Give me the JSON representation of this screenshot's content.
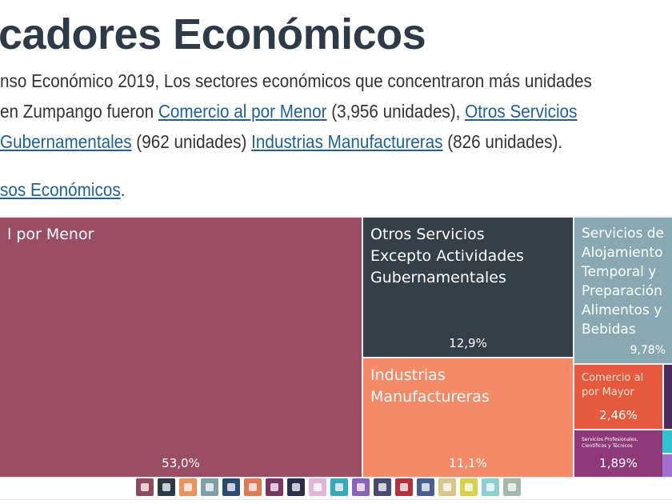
{
  "title": "cadores Económicos",
  "paragraph": {
    "line1": "nso Económico 2019, Los sectores económicos que concentraron más unidades",
    "line2_prefix": " en Zumpango fueron ",
    "link_comercio_menor": "Comercio al por Menor",
    "line2_mid": " (3,956 unidades), ",
    "link_otros_servicios": "Otros Servicios",
    "link_gubernamentales": "Gubernamentales",
    "line3_mid": " (962 unidades)  ",
    "link_industrias": "Industrias Manufactureras",
    "line3_suffix": " (826 unidades).",
    "link_censos": "sos Económicos",
    "line4_suffix": "."
  },
  "chart_data": {
    "type": "treemap",
    "items": [
      {
        "label": "l por Menor",
        "value": 53.0,
        "value_label": "53,0%",
        "color": "#9a4d64"
      },
      {
        "label": "Otros Servicios\nExcepto Actividades\nGubernamentales",
        "value": 12.9,
        "value_label": "12,9%",
        "color": "#353f48"
      },
      {
        "label": "Industrias\nManufactureras",
        "value": 11.1,
        "value_label": "11,1%",
        "color": "#f58a68"
      },
      {
        "label": "Servicios de\nAlojamiento\nTemporal y\nPreparación\nAlimentos y\nBebidas",
        "value": 9.78,
        "value_label": "9,78%",
        "color": "#8aa8b2"
      },
      {
        "label": "Comercio al\npor Mayor",
        "value": 2.46,
        "value_label": "2,46%",
        "color": "#e55a3e"
      },
      {
        "label": "Servicios Profesionales,\nCientíficos y Técnicos",
        "value": 1.89,
        "value_label": "1,89%",
        "color": "#8e3a7a"
      },
      {
        "label": "",
        "color": "#4a2b5a"
      },
      {
        "label": "",
        "color": "#2ec4d0"
      },
      {
        "label": "",
        "color": "#a070c8"
      }
    ]
  },
  "sector_icons": [
    {
      "name": "retail-bag",
      "color": "#8e4a5e"
    },
    {
      "name": "tools",
      "color": "#2e3a44"
    },
    {
      "name": "factory",
      "color": "#e8935e"
    },
    {
      "name": "hotel",
      "color": "#7f9ea6"
    },
    {
      "name": "heart",
      "color": "#2c4a6e"
    },
    {
      "name": "warehouse",
      "color": "#e07a55"
    },
    {
      "name": "professional",
      "color": "#7a3562"
    },
    {
      "name": "briefcase",
      "color": "#2a2f4a"
    },
    {
      "name": "document",
      "color": "#e0b6d8"
    },
    {
      "name": "music",
      "color": "#3aa8b8"
    },
    {
      "name": "real-estate",
      "color": "#8a62b8"
    },
    {
      "name": "money-bag",
      "color": "#4a4a6e"
    },
    {
      "name": "truck",
      "color": "#b0323e"
    },
    {
      "name": "media",
      "color": "#4a5e8e"
    },
    {
      "name": "construction-cone",
      "color": "#d6c88a"
    },
    {
      "name": "lightbulb",
      "color": "#d6d04a"
    },
    {
      "name": "plug",
      "color": "#8ed0d0"
    },
    {
      "name": "agriculture",
      "color": "#a8b8a8"
    }
  ]
}
